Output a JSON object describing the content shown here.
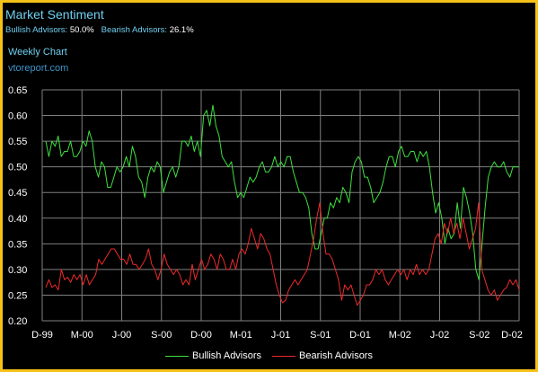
{
  "header": {
    "title": "Market Sentiment",
    "bullish_label": "Bullish Advisors:",
    "bullish_value": "50.0%",
    "bearish_label": "Bearish Advisors:",
    "bearish_value": "26.1%",
    "subtitle": "Weekly Chart",
    "source": "vtoreport.com"
  },
  "legend": {
    "bullish": "Bullish Advisors",
    "bearish": "Bearish Advisors"
  },
  "colors": {
    "background": "#000000",
    "border": "#f6c21a",
    "bullish": "#3ee03e",
    "bearish": "#ee2a2a",
    "grid": "#7f7f7f",
    "title": "#6fd0f0",
    "source": "#3f93c9"
  },
  "chart_data": {
    "type": "line",
    "title": "Market Sentiment",
    "subtitle": "Weekly Chart",
    "xlabel": "",
    "ylabel": "",
    "ylim": [
      0.2,
      0.65
    ],
    "yticks": [
      0.65,
      0.6,
      0.55,
      0.5,
      0.45,
      0.4,
      0.35,
      0.3,
      0.25,
      0.2
    ],
    "ytick_labels": [
      "0.65",
      "0.60",
      "0.55",
      "0.50",
      "0.45",
      "0.40",
      "0.35",
      "0.30",
      "0.25",
      "0.20"
    ],
    "x_tick_labels": [
      "D-99",
      "M-00",
      "J-00",
      "S-00",
      "D-00",
      "M-01",
      "J-01",
      "S-01",
      "D-01",
      "M-02",
      "J-02",
      "S-02",
      "D-02"
    ],
    "grid": true,
    "legend_position": "bottom",
    "series": [
      {
        "name": "Bullish Advisors",
        "color": "#3ee03e",
        "values": [
          0.55,
          0.52,
          0.55,
          0.54,
          0.56,
          0.52,
          0.53,
          0.53,
          0.55,
          0.52,
          0.52,
          0.53,
          0.55,
          0.54,
          0.57,
          0.55,
          0.5,
          0.48,
          0.51,
          0.5,
          0.46,
          0.46,
          0.48,
          0.5,
          0.49,
          0.5,
          0.52,
          0.5,
          0.54,
          0.52,
          0.48,
          0.47,
          0.44,
          0.48,
          0.5,
          0.49,
          0.51,
          0.5,
          0.45,
          0.47,
          0.49,
          0.5,
          0.48,
          0.5,
          0.55,
          0.55,
          0.54,
          0.56,
          0.53,
          0.55,
          0.52,
          0.6,
          0.61,
          0.58,
          0.62,
          0.58,
          0.56,
          0.52,
          0.51,
          0.5,
          0.51,
          0.47,
          0.44,
          0.45,
          0.44,
          0.46,
          0.48,
          0.47,
          0.48,
          0.5,
          0.51,
          0.49,
          0.49,
          0.5,
          0.52,
          0.5,
          0.51,
          0.5,
          0.52,
          0.52,
          0.49,
          0.47,
          0.45,
          0.45,
          0.44,
          0.42,
          0.37,
          0.34,
          0.34,
          0.37,
          0.4,
          0.4,
          0.43,
          0.42,
          0.44,
          0.43,
          0.46,
          0.45,
          0.43,
          0.49,
          0.51,
          0.52,
          0.51,
          0.48,
          0.48,
          0.46,
          0.43,
          0.44,
          0.45,
          0.47,
          0.5,
          0.52,
          0.52,
          0.5,
          0.53,
          0.54,
          0.52,
          0.52,
          0.53,
          0.53,
          0.51,
          0.53,
          0.52,
          0.53,
          0.5,
          0.45,
          0.41,
          0.43,
          0.4,
          0.35,
          0.38,
          0.36,
          0.37,
          0.43,
          0.38,
          0.46,
          0.44,
          0.41,
          0.37,
          0.3,
          0.28,
          0.35,
          0.42,
          0.48,
          0.5,
          0.51,
          0.5,
          0.5,
          0.51,
          0.49,
          0.48,
          0.5,
          0.5,
          0.5
        ]
      },
      {
        "name": "Bearish Advisors",
        "color": "#ee2a2a",
        "values": [
          0.265,
          0.28,
          0.265,
          0.27,
          0.26,
          0.3,
          0.28,
          0.285,
          0.275,
          0.29,
          0.28,
          0.29,
          0.27,
          0.29,
          0.27,
          0.28,
          0.29,
          0.32,
          0.31,
          0.32,
          0.33,
          0.34,
          0.34,
          0.33,
          0.32,
          0.32,
          0.31,
          0.33,
          0.31,
          0.31,
          0.3,
          0.31,
          0.32,
          0.34,
          0.31,
          0.3,
          0.28,
          0.3,
          0.33,
          0.31,
          0.3,
          0.29,
          0.3,
          0.29,
          0.27,
          0.28,
          0.27,
          0.31,
          0.28,
          0.3,
          0.32,
          0.3,
          0.31,
          0.33,
          0.32,
          0.3,
          0.33,
          0.32,
          0.3,
          0.3,
          0.32,
          0.3,
          0.33,
          0.34,
          0.33,
          0.35,
          0.38,
          0.36,
          0.34,
          0.37,
          0.36,
          0.34,
          0.33,
          0.3,
          0.27,
          0.25,
          0.235,
          0.24,
          0.26,
          0.27,
          0.28,
          0.27,
          0.28,
          0.29,
          0.3,
          0.33,
          0.36,
          0.4,
          0.43,
          0.37,
          0.33,
          0.33,
          0.32,
          0.3,
          0.28,
          0.24,
          0.27,
          0.26,
          0.27,
          0.25,
          0.23,
          0.24,
          0.25,
          0.27,
          0.27,
          0.28,
          0.3,
          0.29,
          0.3,
          0.28,
          0.27,
          0.28,
          0.29,
          0.3,
          0.29,
          0.3,
          0.28,
          0.3,
          0.29,
          0.31,
          0.29,
          0.3,
          0.29,
          0.3,
          0.33,
          0.36,
          0.37,
          0.35,
          0.39,
          0.37,
          0.4,
          0.37,
          0.39,
          0.36,
          0.4,
          0.37,
          0.34,
          0.36,
          0.38,
          0.43,
          0.3,
          0.28,
          0.26,
          0.25,
          0.26,
          0.24,
          0.25,
          0.26,
          0.265,
          0.28,
          0.27,
          0.28,
          0.26
        ]
      }
    ]
  }
}
